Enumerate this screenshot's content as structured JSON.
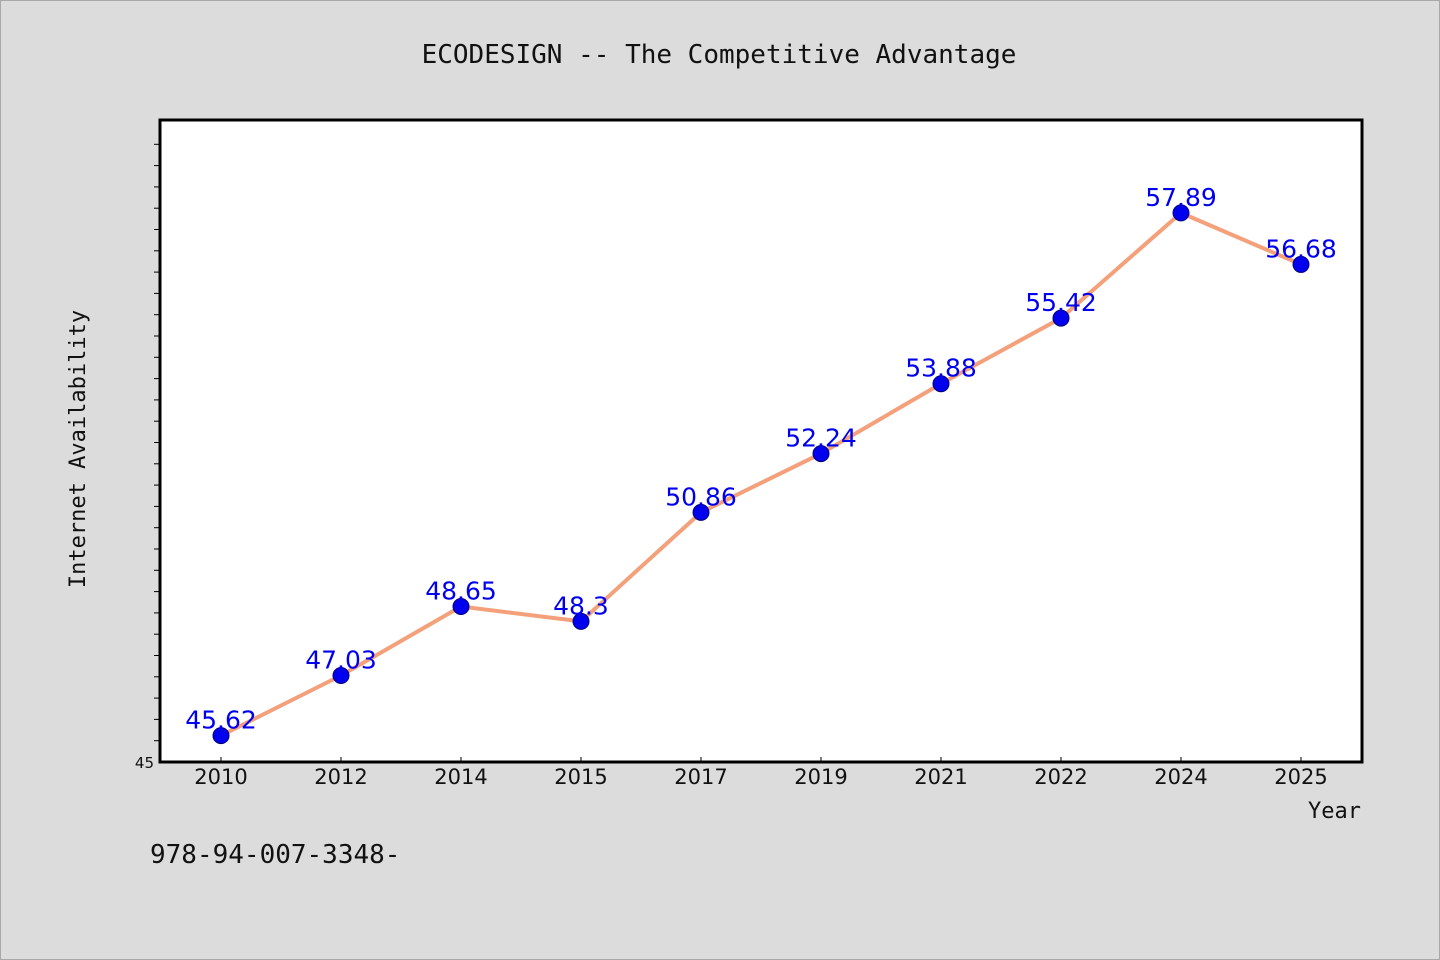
{
  "chart_data": {
    "type": "line",
    "title": "ECODESIGN -- The Competitive Advantage",
    "xlabel": "Year",
    "ylabel": "Internet Availability",
    "categories": [
      "2010",
      "2012",
      "2014",
      "2015",
      "2017",
      "2019",
      "2021",
      "2022",
      "2024",
      "2025"
    ],
    "series": [
      {
        "values": [
          45.62,
          47.03,
          48.65,
          48.3,
          50.86,
          52.24,
          53.88,
          55.42,
          57.89,
          56.68
        ],
        "data_labels": [
          "45.62",
          "47.03",
          "48.65",
          "48.3",
          "50.86",
          "52.24",
          "53.88",
          "55.42",
          "57.89",
          "56.68"
        ]
      }
    ],
    "ylim": [
      45,
      60
    ],
    "y_tick_labels": [
      "45"
    ],
    "grid": false,
    "legend": "none",
    "line_color": "#f4a07a",
    "marker_color": "#0000ee",
    "label_color": "#0000ee"
  },
  "footer": {
    "text": "978-94-007-3348-"
  }
}
